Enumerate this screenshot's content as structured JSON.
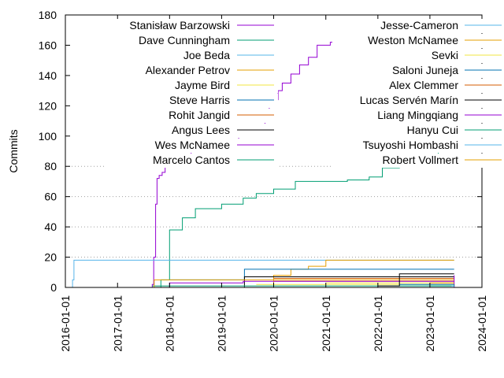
{
  "chart_data": {
    "type": "line",
    "title": "",
    "xlabel": "",
    "ylabel": "Commits",
    "ylim": [
      0,
      180
    ],
    "y_ticks": [
      0,
      20,
      40,
      60,
      80,
      100,
      120,
      140,
      160,
      180
    ],
    "y_tick_labels": [
      "0",
      "20",
      "40",
      "60",
      "80",
      "100",
      "120",
      "140",
      "160",
      "180"
    ],
    "xlim": [
      "2016-01-01",
      "2024-01-01"
    ],
    "x_ticks": [
      "2016-01-01",
      "2017-01-01",
      "2018-01-01",
      "2019-01-01",
      "2020-01-01",
      "2021-01-01",
      "2022-01-01",
      "2023-01-01",
      "2024-01-01"
    ],
    "grid": "horizontal dotted lines at 20, 60, 80 (behind legend elsewhere)",
    "legend_placement": "top, two columns",
    "series": [
      {
        "name": "Stanisław Barzowski",
        "color": "#9400d3",
        "x": [
          "2016-08-01",
          "2017-09-01",
          "2017-09-12",
          "2017-09-25",
          "2017-10-05",
          "2017-10-20",
          "2017-11-10",
          "2017-12-01",
          "2018-01-15",
          "2018-03-01",
          "2018-06-01",
          "2018-09-01",
          "2019-01-01",
          "2019-05-01",
          "2019-09-01",
          "2019-11-01",
          "2019-12-01",
          "2020-01-10",
          "2020-02-01",
          "2020-03-01",
          "2020-05-01",
          "2020-07-01",
          "2020-09-01",
          "2020-11-01",
          "2021-02-01",
          "2021-06-01",
          "2022-01-01",
          "2023-06-01",
          "2023-06-20"
        ],
        "y": [
          0,
          2,
          20,
          55,
          72,
          74,
          76,
          80,
          86,
          88,
          90,
          92,
          95,
          100,
          106,
          113,
          120,
          124,
          130,
          135,
          141,
          147,
          152,
          160,
          162,
          164,
          166,
          167,
          167
        ]
      },
      {
        "name": "Dave Cunningham",
        "color": "#009e73",
        "x": [
          "2016-01-01",
          "2017-09-01",
          "2017-11-01",
          "2018-01-01",
          "2018-04-01",
          "2018-07-01",
          "2019-01-01",
          "2019-06-01",
          "2019-09-01",
          "2020-01-01",
          "2020-06-01",
          "2021-06-01",
          "2021-11-01",
          "2022-02-01",
          "2022-06-01",
          "2022-12-01",
          "2023-03-01",
          "2023-06-20"
        ],
        "y": [
          0,
          0,
          5,
          38,
          46,
          52,
          55,
          59,
          62,
          65,
          70,
          71,
          73,
          79,
          82,
          86,
          91,
          93
        ]
      },
      {
        "name": "Joe Beda",
        "color": "#56b4e9",
        "x": [
          "2016-01-20",
          "2016-02-20",
          "2016-03-01",
          "2017-09-01",
          "2017-09-20",
          "2023-06-20"
        ],
        "y": [
          0,
          5,
          18,
          18,
          18,
          18
        ]
      },
      {
        "name": "Alexander Petrov",
        "color": "#e69f00",
        "x": [
          "2019-11-01",
          "2020-01-01",
          "2020-05-01",
          "2020-09-01",
          "2021-01-01",
          "2023-06-20"
        ],
        "y": [
          0,
          8,
          12,
          14,
          18,
          18
        ]
      },
      {
        "name": "Jayme Bird",
        "color": "#f0e442",
        "x": [
          "2019-09-01",
          "2023-06-20"
        ],
        "y": [
          2,
          2
        ]
      },
      {
        "name": "Steve Harris",
        "color": "#0072b2",
        "x": [
          "2018-01-01",
          "2019-06-01",
          "2019-06-10",
          "2019-10-01",
          "2023-06-20"
        ],
        "y": [
          5,
          5,
          12,
          12,
          12
        ]
      },
      {
        "name": "Rohit Jangid",
        "color": "#d55e00",
        "x": [
          "2020-01-01",
          "2023-06-20"
        ],
        "y": [
          4,
          4
        ]
      },
      {
        "name": "Angus Lees",
        "color": "#000000",
        "x": [
          "2017-08-01",
          "2019-06-01",
          "2019-06-10",
          "2023-06-20"
        ],
        "y": [
          0,
          0,
          7,
          7
        ]
      },
      {
        "name": "Wes McNamee",
        "color": "#9400d3",
        "x": [
          "2017-08-01",
          "2018-01-01",
          "2019-06-01",
          "2023-06-20"
        ],
        "y": [
          0,
          3,
          4,
          4
        ]
      },
      {
        "name": "Marcelo Cantos",
        "color": "#009e73",
        "x": [
          "2017-09-01",
          "2023-06-20"
        ],
        "y": [
          1,
          1
        ]
      },
      {
        "name": "Jesse-Cameron",
        "color": "#56b4e9",
        "x": [
          "2016-01-01",
          "2023-06-20"
        ],
        "y": [
          0,
          0
        ]
      },
      {
        "name": "Weston McNamee",
        "color": "#e69f00",
        "x": [
          "2017-09-01",
          "2017-09-15",
          "2023-06-20"
        ],
        "y": [
          0,
          5,
          5
        ]
      },
      {
        "name": "Sevki",
        "color": "#f0e442",
        "x": [
          "2021-01-01",
          "2023-06-20"
        ],
        "y": [
          3,
          3
        ]
      },
      {
        "name": "Saloni Juneja",
        "color": "#0072b2",
        "x": [
          "2022-06-01",
          "2023-06-20"
        ],
        "y": [
          2,
          2
        ]
      },
      {
        "name": "Alex Clemmer",
        "color": "#d55e00",
        "x": [
          "2020-01-01",
          "2023-06-20"
        ],
        "y": [
          6,
          6
        ]
      },
      {
        "name": "Lucas Servén Marín",
        "color": "#000000",
        "x": [
          "2022-01-01",
          "2022-06-01",
          "2023-06-20"
        ],
        "y": [
          1,
          9,
          9
        ]
      },
      {
        "name": "Liang Mingqiang",
        "color": "#9400d3",
        "x": [
          "2023-01-01",
          "2023-06-20"
        ],
        "y": [
          0,
          8
        ]
      },
      {
        "name": "Hanyu Cui",
        "color": "#009e73",
        "x": [
          "2023-01-01",
          "2023-06-20"
        ],
        "y": [
          1,
          2
        ]
      },
      {
        "name": "Tsuyoshi Hombashi",
        "color": "#56b4e9",
        "x": [
          "2023-06-01",
          "2023-06-20"
        ],
        "y": [
          1,
          1
        ]
      },
      {
        "name": "Robert Vollmert",
        "color": "#e69f00",
        "x": [
          "2023-01-01",
          "2023-06-20"
        ],
        "y": [
          3,
          3
        ]
      }
    ]
  }
}
